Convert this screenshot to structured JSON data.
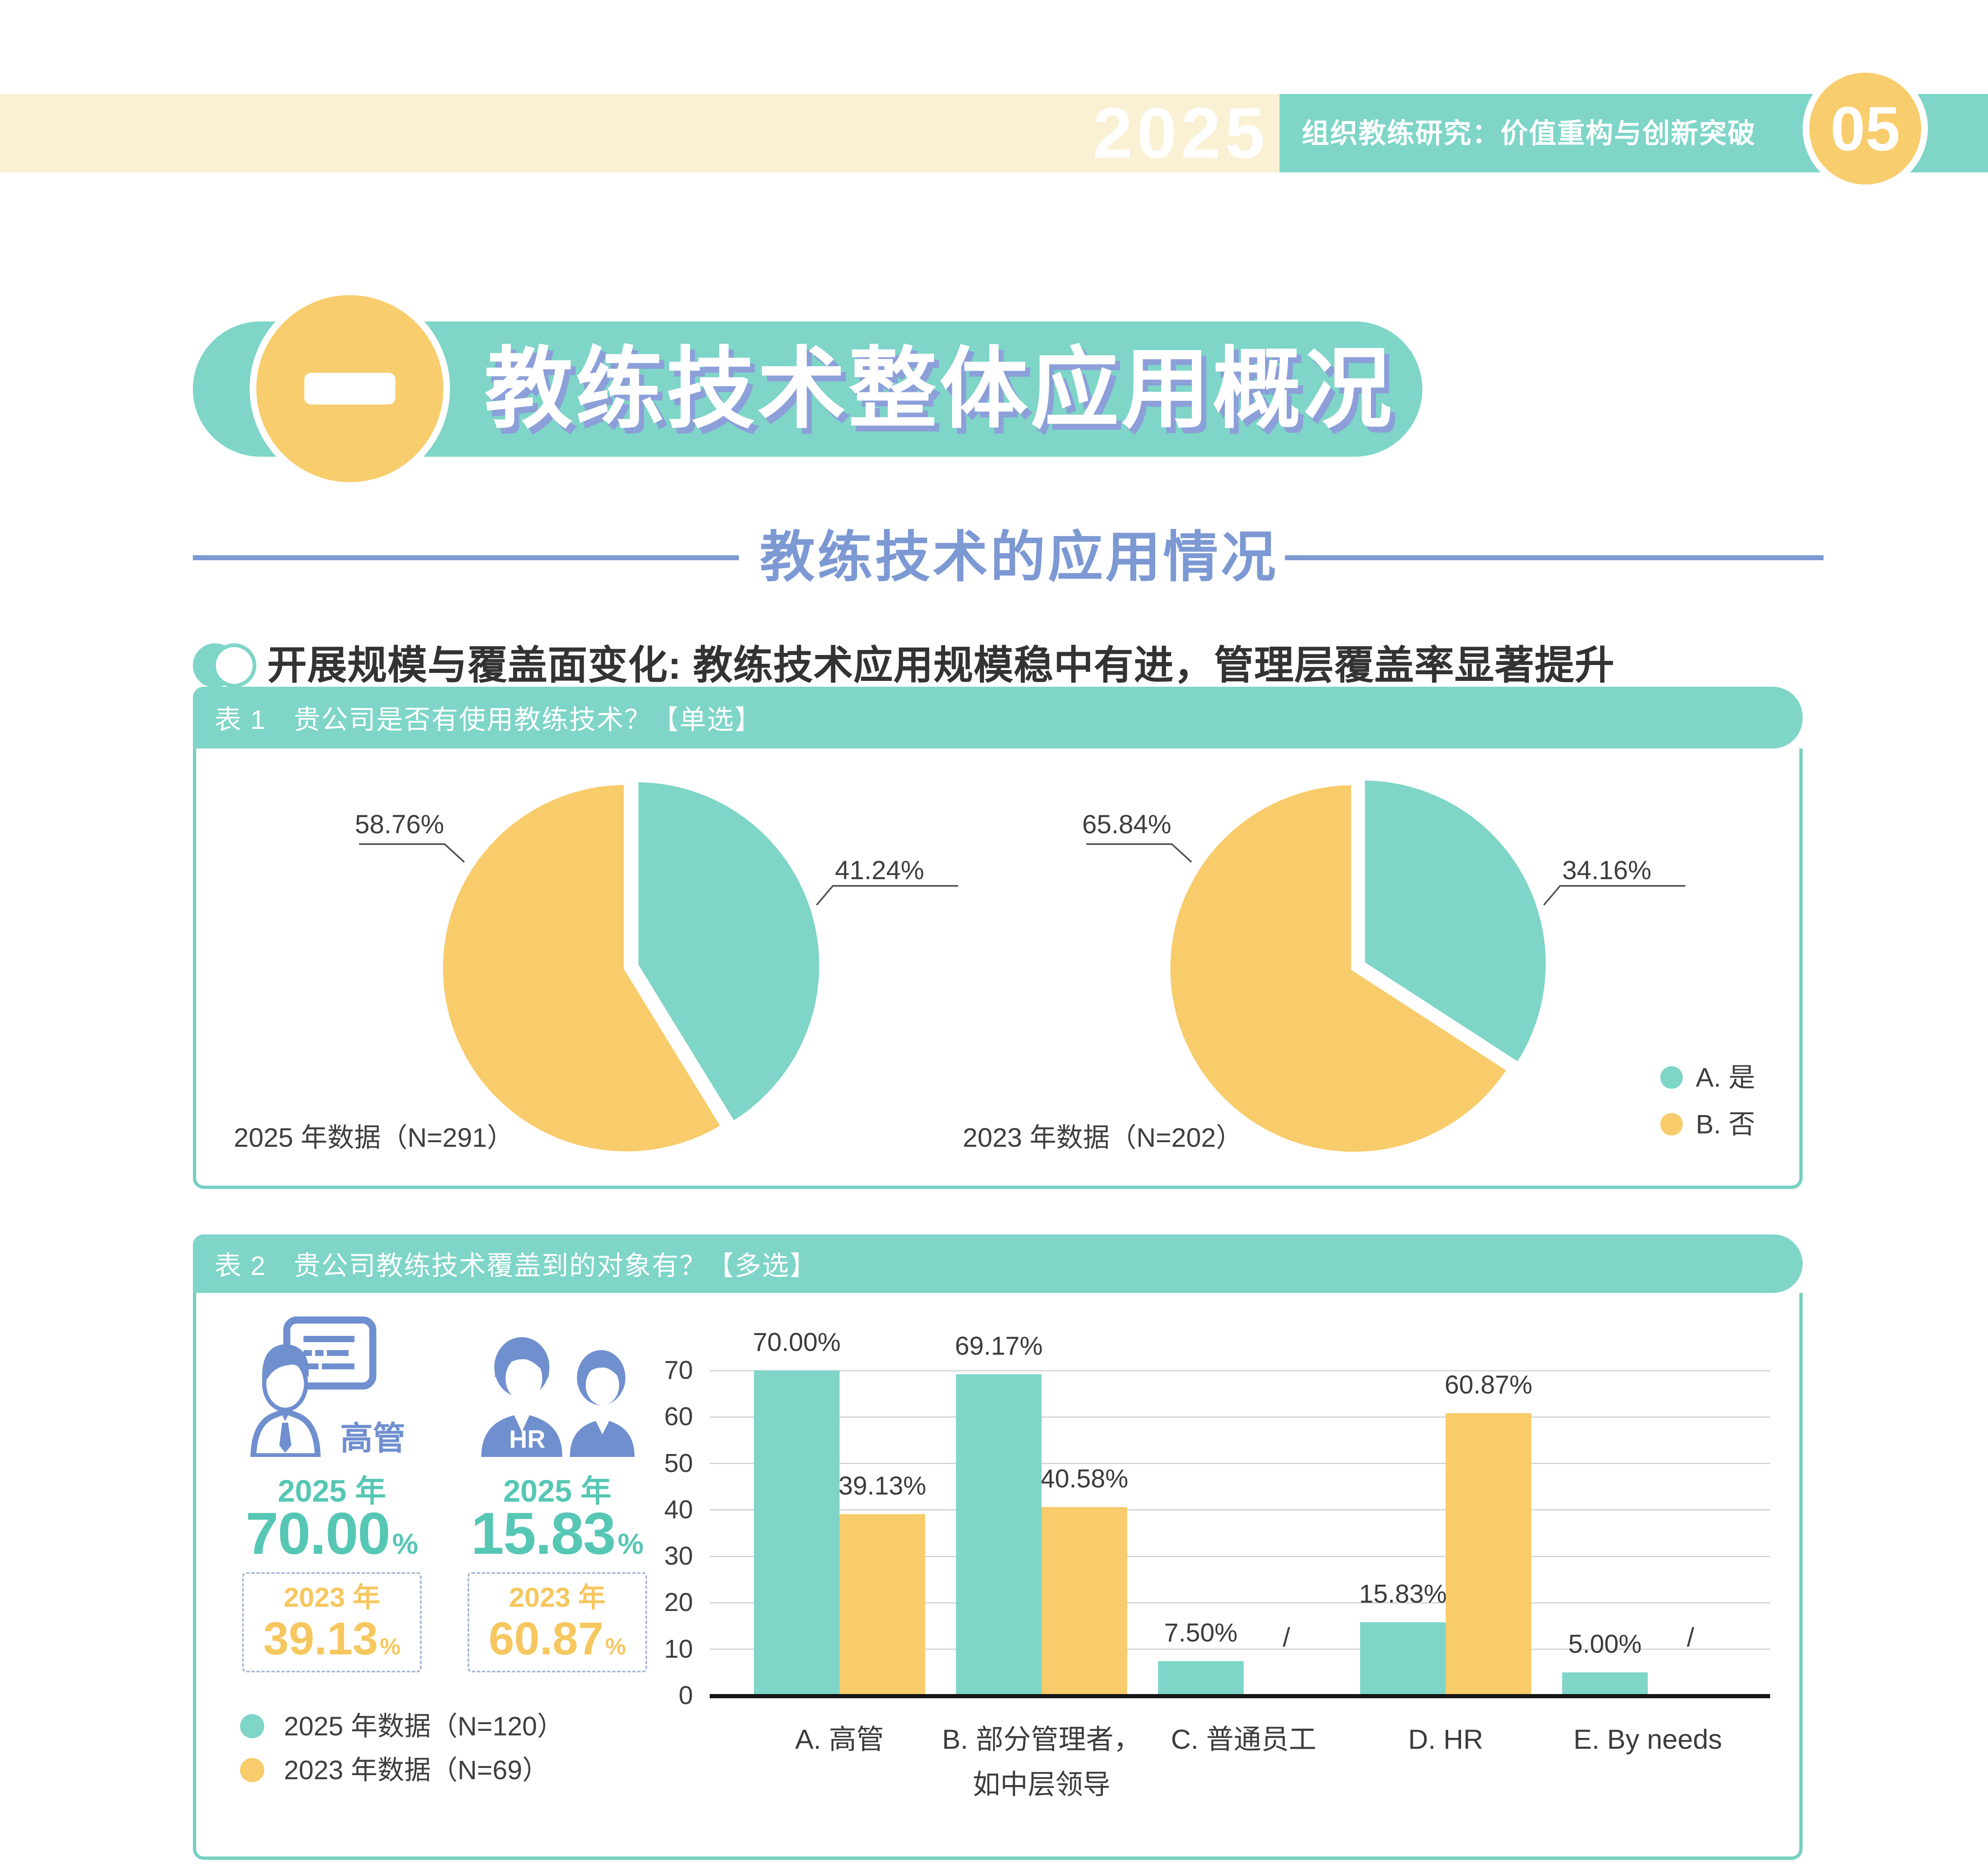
{
  "header": {
    "year_watermark": "2025",
    "banner_title": "组织教练研究：价值重构与创新突破",
    "page_number": "05"
  },
  "section": {
    "index_label": "一",
    "title": "教练技术整体应用概况",
    "subtitle": "教练技术的应用情况"
  },
  "highlight": "开展规模与覆盖面变化: 教练技术应用规模稳中有进，管理层覆盖率显著提升",
  "table1": {
    "header": "表 1　贵公司是否有使用教练技术？【单选】",
    "legend": [
      {
        "label": "A. 是",
        "color": "#7ED5C8"
      },
      {
        "label": "B. 否",
        "color": "#F8CB6B"
      }
    ]
  },
  "table2": {
    "header": "表 2　贵公司教练技术覆盖到的对象有？【多选】",
    "highlight_groups": [
      {
        "icon": "executive-icon",
        "label": "高管",
        "year_2025": "2025 年",
        "value_2025": "70.00",
        "year_2023": "2023 年",
        "value_2023": "39.13",
        "unit": "%"
      },
      {
        "icon": "hr-icon",
        "label": "HR",
        "year_2025": "2025 年",
        "value_2025": "15.83",
        "year_2023": "2023 年",
        "value_2023": "60.87",
        "unit": "%"
      }
    ],
    "legend": [
      {
        "label": "2025 年数据（N=120）",
        "color": "#7ED5C8"
      },
      {
        "label": "2023 年数据（N=69）",
        "color": "#F8CB6B"
      }
    ]
  },
  "colors": {
    "teal": "#7ED5C8",
    "yellow": "#F8CB6B",
    "cream": "#FAF0D4",
    "accent_blue": "#6F8FCF",
    "subtitle_blue": "#7D99D4",
    "title_shadow": "#8C9FD9",
    "teal_text": "#56C7B4",
    "yellow_text": "#F6C75F",
    "dark_text": "#3C3C3C"
  },
  "chart_data": [
    {
      "type": "pie",
      "name": "pie-2025",
      "title": "2025 年数据（N=291）",
      "labels": [
        "A. 是",
        "B. 否"
      ],
      "values": [
        41.24,
        58.76
      ],
      "value_labels": [
        "41.24%",
        "58.76%"
      ],
      "colors": [
        "#7ED5C8",
        "#F8CB6B"
      ],
      "start_angle": "top",
      "direction": "clockwise"
    },
    {
      "type": "pie",
      "name": "pie-2023",
      "title": "2023 年数据（N=202）",
      "labels": [
        "A. 是",
        "B. 否"
      ],
      "values": [
        34.16,
        65.84
      ],
      "value_labels": [
        "34.16%",
        "65.84%"
      ],
      "colors": [
        "#7ED5C8",
        "#F8CB6B"
      ],
      "start_angle": "top",
      "direction": "clockwise"
    },
    {
      "type": "bar",
      "name": "coverage-bar-chart",
      "categories": [
        "A. 高管",
        "B. 部分管理者，\n如中层领导",
        "C. 普通员工",
        "D. HR",
        "E. By needs"
      ],
      "series": [
        {
          "name": "2025 年数据（N=120）",
          "color": "#7ED5C8",
          "values": [
            70.0,
            69.17,
            7.5,
            15.83,
            5.0
          ]
        },
        {
          "name": "2023 年数据（N=69）",
          "color": "#F8CB6B",
          "values": [
            39.13,
            40.58,
            null,
            60.87,
            null
          ]
        }
      ],
      "null_marker": "/",
      "ylim": [
        0,
        70
      ],
      "ytick_step": 10,
      "grid": true,
      "value_label_format": "toFixed(2)+%"
    }
  ]
}
